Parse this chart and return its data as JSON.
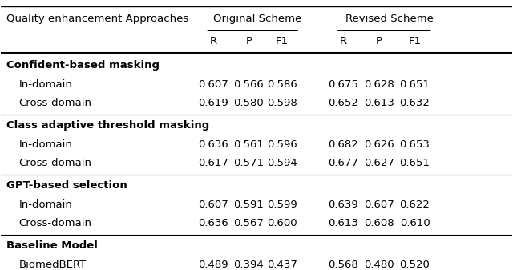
{
  "title_col": "Quality enhancement Approaches",
  "scheme_headers": [
    "Original Scheme",
    "Revised Scheme"
  ],
  "sub_headers": [
    "R",
    "P",
    "F1",
    "R",
    "P",
    "F1"
  ],
  "sections": [
    {
      "header": "Confident-based masking",
      "rows": [
        {
          "label": "In-domain",
          "vals": [
            "0.607",
            "0.566",
            "0.586",
            "0.675",
            "0.628",
            "0.651"
          ]
        },
        {
          "label": "Cross-domain",
          "vals": [
            "0.619",
            "0.580",
            "0.598",
            "0.652",
            "0.613",
            "0.632"
          ]
        }
      ]
    },
    {
      "header": "Class adaptive threshold masking",
      "rows": [
        {
          "label": "In-domain",
          "vals": [
            "0.636",
            "0.561",
            "0.596",
            "0.682",
            "0.626",
            "0.653"
          ]
        },
        {
          "label": "Cross-domain",
          "vals": [
            "0.617",
            "0.571",
            "0.594",
            "0.677",
            "0.627",
            "0.651"
          ]
        }
      ]
    },
    {
      "header": "GPT-based selection",
      "rows": [
        {
          "label": "In-domain",
          "vals": [
            "0.607",
            "0.591",
            "0.599",
            "0.639",
            "0.607",
            "0.622"
          ]
        },
        {
          "label": "Cross-domain",
          "vals": [
            "0.636",
            "0.567",
            "0.600",
            "0.613",
            "0.608",
            "0.610"
          ]
        }
      ]
    },
    {
      "header": "Baseline Model",
      "rows": [
        {
          "label": "BiomedBERT",
          "vals": [
            "0.489",
            "0.394",
            "0.437",
            "0.568",
            "0.480",
            "0.520"
          ]
        }
      ]
    }
  ],
  "bg_color": "#ffffff",
  "text_color": "#000000",
  "font_size": 9.5,
  "header_font_size": 9.5
}
